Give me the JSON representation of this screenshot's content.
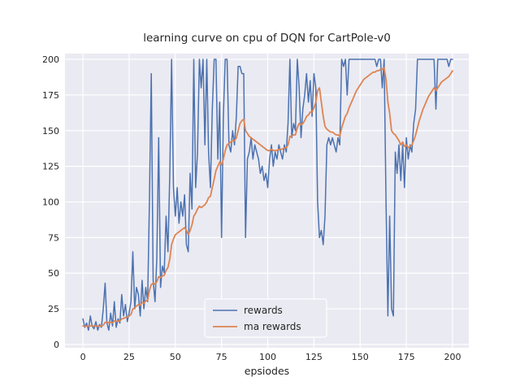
{
  "chart_data": {
    "type": "line",
    "title": "learning curve on cpu of DQN for CartPole-v0",
    "xlabel": "epsiodes",
    "ylabel": "",
    "grid": true,
    "xlim": [
      -9.7,
      208.8
    ],
    "ylim": [
      -2.3,
      204.0
    ],
    "xticks": [
      0,
      25,
      50,
      75,
      100,
      125,
      150,
      175,
      200
    ],
    "yticks": [
      0,
      25,
      50,
      75,
      100,
      125,
      150,
      175,
      200
    ],
    "legend": {
      "position": "lower center",
      "entries": [
        "rewards",
        "ma rewards"
      ]
    },
    "colors": {
      "rewards": "#4C72B0",
      "ma_rewards": "#DD8452",
      "axes_background": "#EAEAF2",
      "grid": "#FFFFFF",
      "text": "#262626"
    },
    "x_start": 0,
    "x_step": 1,
    "series": [
      {
        "name": "rewards",
        "color": "#4C72B0",
        "values": [
          18,
          12,
          15,
          10,
          20,
          13,
          11,
          16,
          10,
          14,
          12,
          25,
          43,
          15,
          10,
          22,
          13,
          30,
          12,
          18,
          15,
          35,
          20,
          28,
          16,
          22,
          30,
          65,
          25,
          40,
          35,
          20,
          45,
          25,
          40,
          30,
          100,
          190,
          45,
          30,
          60,
          145,
          40,
          55,
          50,
          90,
          65,
          120,
          200,
          110,
          90,
          110,
          85,
          100,
          90,
          105,
          70,
          65,
          120,
          95,
          200,
          110,
          135,
          200,
          180,
          200,
          140,
          200,
          135,
          110,
          165,
          200,
          200,
          130,
          170,
          75,
          160,
          200,
          200,
          140,
          135,
          150,
          140,
          160,
          195,
          195,
          190,
          190,
          75,
          130,
          135,
          145,
          130,
          140,
          135,
          130,
          120,
          125,
          115,
          120,
          110,
          130,
          140,
          125,
          135,
          130,
          140,
          135,
          130,
          140,
          135,
          155,
          200,
          145,
          155,
          150,
          200,
          180,
          145,
          165,
          175,
          190,
          170,
          185,
          160,
          190,
          180,
          100,
          75,
          80,
          70,
          90,
          140,
          145,
          140,
          145,
          140,
          135,
          145,
          140,
          200,
          195,
          200,
          175,
          200,
          200,
          200,
          200,
          200,
          200,
          200,
          200,
          200,
          200,
          200,
          200,
          200,
          200,
          200,
          195,
          200,
          200,
          180,
          200,
          100,
          20,
          90,
          25,
          20,
          135,
          120,
          140,
          115,
          140,
          110,
          145,
          130,
          140,
          135,
          155,
          165,
          200,
          200,
          200,
          200,
          200,
          200,
          200,
          200,
          200,
          200,
          165,
          200,
          200,
          200,
          200,
          200,
          200,
          195,
          200,
          200
        ]
      },
      {
        "name": "ma rewards",
        "color": "#DD8452",
        "values": [
          13,
          12.8,
          12.9,
          12.7,
          13,
          13.1,
          12.9,
          13,
          12.8,
          12.9,
          13,
          13.5,
          15.5,
          15.8,
          15.2,
          15.5,
          15.2,
          16.5,
          16.2,
          16.4,
          16.5,
          18,
          18.2,
          19,
          19.2,
          20,
          21,
          25,
          25.5,
          27,
          28,
          27.5,
          29.5,
          29,
          30.5,
          31,
          38,
          42,
          43,
          42.5,
          44,
          47.5,
          47,
          48,
          48.5,
          52,
          54,
          60,
          70,
          74,
          77,
          78,
          79,
          80,
          81,
          82,
          80,
          77,
          80,
          84,
          90,
          92,
          95,
          97,
          96,
          97,
          98,
          100,
          103,
          104,
          110,
          116,
          122,
          125,
          128,
          126,
          130,
          136,
          140,
          141,
          142,
          143,
          143,
          145,
          150,
          155,
          157,
          158,
          150,
          148,
          146,
          145,
          144,
          143,
          142,
          141,
          140,
          139,
          138,
          137,
          136,
          136,
          137,
          136,
          136,
          136,
          137,
          137,
          137,
          138,
          138,
          140,
          146,
          146,
          147,
          147,
          152,
          155,
          154,
          155,
          157,
          160,
          161,
          163,
          163,
          166,
          170,
          178,
          180,
          170,
          160,
          153,
          151,
          150,
          149,
          149,
          148,
          147,
          147,
          146,
          152,
          156,
          160,
          162,
          166,
          169,
          172,
          175,
          178,
          180,
          182,
          184,
          186,
          187,
          188,
          189,
          190,
          191,
          191,
          192,
          192,
          193,
          193,
          194,
          186,
          170,
          162,
          150,
          148,
          147,
          145,
          143,
          140,
          142,
          139,
          140,
          138,
          139,
          140,
          143,
          147,
          152,
          157,
          161,
          165,
          168,
          171,
          174,
          176,
          178,
          180,
          178,
          180,
          182,
          184,
          185,
          186,
          187,
          188,
          190,
          192
        ]
      }
    ]
  }
}
